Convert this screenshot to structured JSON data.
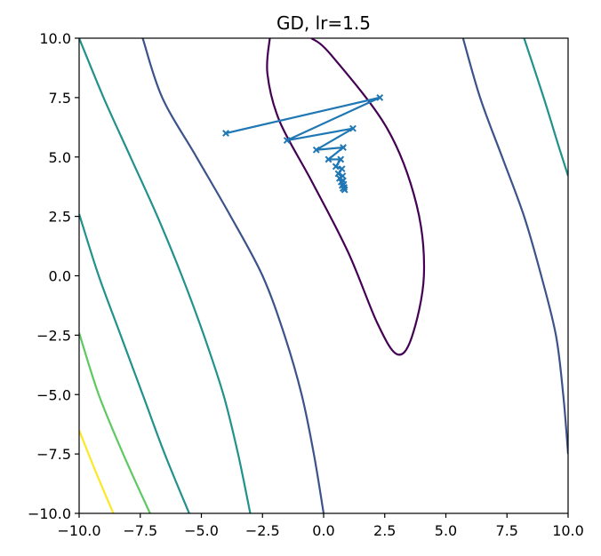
{
  "chart_data": {
    "type": "line",
    "title": "GD, lr=1.5",
    "xlabel": "",
    "ylabel": "",
    "xlim": [
      -10,
      10
    ],
    "ylim": [
      -10,
      10
    ],
    "xticks": [
      "−10.0",
      "−7.5",
      "−5.0",
      "−2.5",
      "0.0",
      "2.5",
      "5.0",
      "7.5",
      "10.0"
    ],
    "yticks": [
      "−10.0",
      "−7.5",
      "−5.0",
      "−2.5",
      "0.0",
      "2.5",
      "5.0",
      "7.5",
      "10.0"
    ],
    "xtick_values": [
      -10,
      -7.5,
      -5,
      -2.5,
      0,
      2.5,
      5,
      7.5,
      10
    ],
    "ytick_values": [
      -10,
      -7.5,
      -5,
      -2.5,
      0,
      2.5,
      5,
      7.5,
      10
    ],
    "grid": false,
    "legend": "none",
    "contour": {
      "colormap": "viridis",
      "colors": [
        "#440154",
        "#3b528b",
        "#21918c",
        "#5ec962",
        "#fde725"
      ],
      "center": [
        2,
        1.8
      ],
      "levels": [
        {
          "color": "#440154",
          "polyline": [
            [
              -2.2,
              10.0
            ],
            [
              -2.3,
              8.5
            ],
            [
              -1.8,
              6.5
            ],
            [
              -0.5,
              4.0
            ],
            [
              1.0,
              1.0
            ],
            [
              2.2,
              -2.0
            ],
            [
              3.0,
              -3.3
            ],
            [
              3.6,
              -2.6
            ],
            [
              4.1,
              0.0
            ],
            [
              3.8,
              3.0
            ],
            [
              2.6,
              6.2
            ],
            [
              0.3,
              9.3
            ],
            [
              -0.5,
              10.0
            ]
          ]
        },
        {
          "color": "#3b528b",
          "polyline": [
            [
              -7.4,
              10.0
            ],
            [
              -6.6,
              7.5
            ],
            [
              -5.2,
              5.0
            ],
            [
              -3.8,
              2.5
            ],
            [
              -2.5,
              0.0
            ],
            [
              -1.6,
              -2.5
            ],
            [
              -0.9,
              -5.0
            ],
            [
              -0.4,
              -7.5
            ],
            [
              0.0,
              -10.0
            ]
          ]
        },
        {
          "color": "#3b528b",
          "polyline": [
            [
              5.7,
              10.0
            ],
            [
              6.4,
              7.5
            ],
            [
              7.3,
              5.0
            ],
            [
              8.2,
              2.5
            ],
            [
              8.9,
              0.0
            ],
            [
              9.5,
              -2.5
            ],
            [
              9.8,
              -5.0
            ],
            [
              10.0,
              -7.5
            ]
          ]
        },
        {
          "color": "#21918c",
          "polyline": [
            [
              -10.0,
              10.0
            ],
            [
              -9.0,
              7.5
            ],
            [
              -7.9,
              5.0
            ],
            [
              -6.8,
              2.5
            ],
            [
              -5.8,
              0.0
            ],
            [
              -4.9,
              -2.5
            ],
            [
              -4.1,
              -5.0
            ],
            [
              -3.5,
              -7.5
            ],
            [
              -3.0,
              -10.0
            ]
          ]
        },
        {
          "color": "#21918c",
          "polyline": [
            [
              8.2,
              10.0
            ],
            [
              9.0,
              7.5
            ],
            [
              9.6,
              5.5
            ],
            [
              10.0,
              4.2
            ]
          ]
        },
        {
          "color": "#21918c",
          "polyline": [
            [
              -10.0,
              2.6
            ],
            [
              -9.2,
              0.0
            ],
            [
              -8.3,
              -2.5
            ],
            [
              -7.4,
              -5.0
            ],
            [
              -6.5,
              -7.5
            ],
            [
              -5.5,
              -10.0
            ]
          ]
        },
        {
          "color": "#5ec962",
          "polyline": [
            [
              -10.0,
              -2.4
            ],
            [
              -9.2,
              -5.0
            ],
            [
              -8.2,
              -7.5
            ],
            [
              -7.1,
              -10.0
            ]
          ]
        },
        {
          "color": "#fde725",
          "polyline": [
            [
              -10.0,
              -6.5
            ],
            [
              -9.3,
              -8.3
            ],
            [
              -8.6,
              -10.0
            ]
          ]
        }
      ]
    },
    "series": [
      {
        "marker": "x",
        "color": "#1f77b4",
        "x": [
          -4.0,
          2.3,
          -1.5,
          1.2,
          -0.3,
          0.8,
          0.2,
          0.7,
          0.5,
          0.75,
          0.6,
          0.78,
          0.65,
          0.8,
          0.72,
          0.82,
          0.76,
          0.84,
          0.8,
          0.86
        ],
        "y": [
          6.0,
          7.5,
          5.7,
          6.2,
          5.3,
          5.4,
          4.9,
          4.9,
          4.6,
          4.5,
          4.3,
          4.2,
          4.1,
          4.0,
          3.95,
          3.85,
          3.8,
          3.72,
          3.68,
          3.62
        ]
      }
    ]
  }
}
